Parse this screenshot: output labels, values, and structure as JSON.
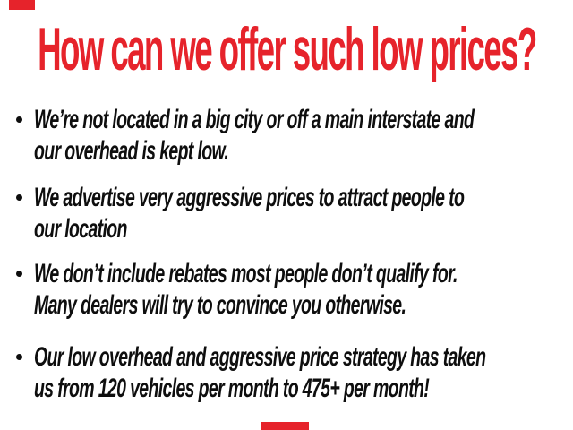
{
  "slide": {
    "title": "How can we offer such low prices?",
    "bullets": [
      {
        "lines": [
          "We’re not located in a big city or off a main interstate and",
          "our overhead is kept low."
        ]
      },
      {
        "lines": [
          "We advertise very aggressive prices to attract people to",
          "our location"
        ]
      },
      {
        "lines": [
          "We don’t include rebates most people don’t qualify for.",
          "Many dealers will try to convince you otherwise."
        ]
      },
      {
        "lines": [
          "Our low overhead and aggressive price strategy has taken",
          "us from 120 vehicles per month to 475+ per month!"
        ]
      }
    ],
    "colors": {
      "accent_red": "#e6232b",
      "text_black": "#0e0e0e",
      "background": "#ffffff"
    }
  }
}
